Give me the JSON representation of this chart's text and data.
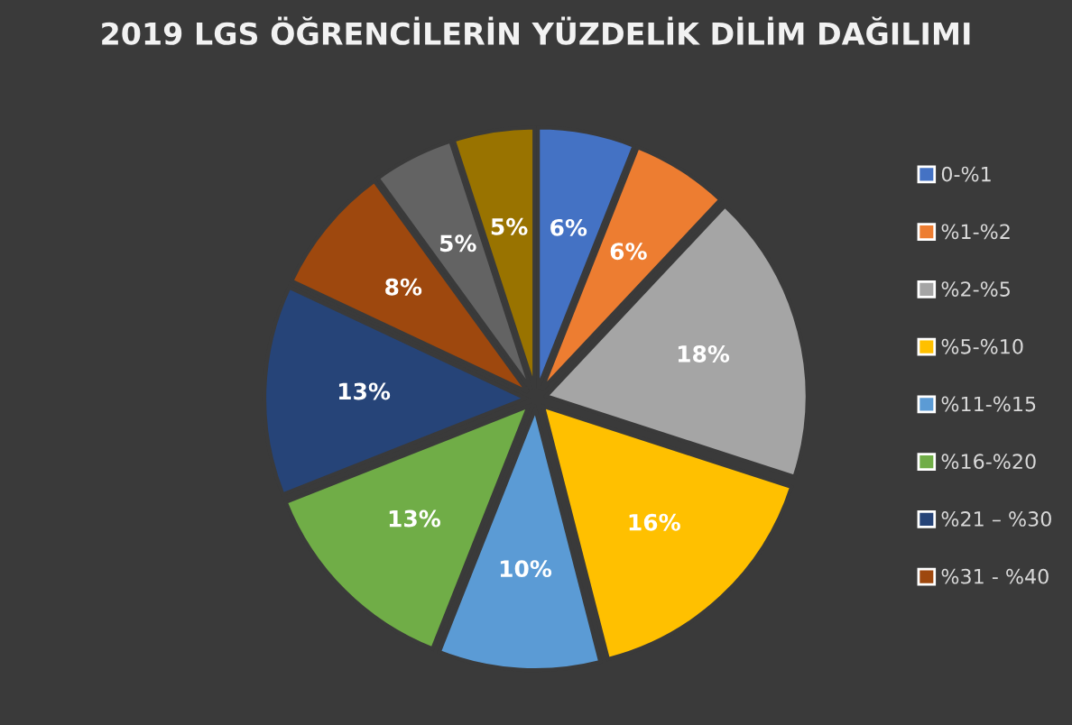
{
  "chart_data": {
    "type": "pie",
    "title": "2019 LGS ÖĞRENCİLERİN YÜZDELİK DİLİM DAĞILIMI",
    "categories": [
      "0-%1",
      "%1-%2",
      "%2-%5",
      "%5-%10",
      "%11-%15",
      "%16-%20",
      "%21 – %30",
      "%31 - %40",
      null,
      null
    ],
    "values": [
      6,
      6,
      18,
      16,
      10,
      13,
      13,
      8,
      5,
      5
    ],
    "colors": [
      "#4472c4",
      "#ed7d31",
      "#a5a5a5",
      "#ffc000",
      "#5b9bd5",
      "#70ad47",
      "#264478",
      "#9e480e",
      "#636363",
      "#997300"
    ],
    "value_labels": [
      "6%",
      "6%",
      "18%",
      "16%",
      "10%",
      "13%",
      "13%",
      "8%",
      "5%",
      "5%"
    ],
    "legend": "right"
  }
}
